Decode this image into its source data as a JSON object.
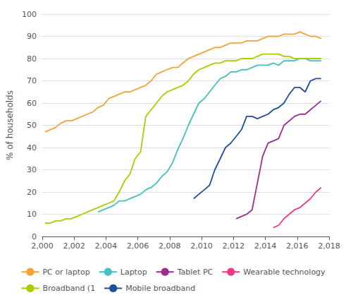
{
  "chart_data": {
    "type": "line",
    "ylabel": "% of households",
    "xlim": [
      2000,
      2018
    ],
    "ylim": [
      0,
      100
    ],
    "xticks": [
      2000,
      2002,
      2004,
      2006,
      2008,
      2010,
      2012,
      2014,
      2016,
      2018
    ],
    "yticks": [
      0,
      10,
      20,
      30,
      40,
      50,
      60,
      70,
      80,
      90,
      100
    ],
    "grid": true,
    "legend": "bottom",
    "series": [
      {
        "name": "PC or laptop",
        "color": "#F4A436",
        "x": [
          2000.17,
          2000.5,
          2000.83,
          2001.17,
          2001.5,
          2001.83,
          2002.17,
          2002.5,
          2002.83,
          2003.17,
          2003.5,
          2003.83,
          2004.17,
          2004.5,
          2004.83,
          2005.17,
          2005.5,
          2005.83,
          2006.17,
          2006.5,
          2006.83,
          2007.17,
          2007.5,
          2007.83,
          2008.17,
          2008.5,
          2008.83,
          2009.17,
          2009.5,
          2009.83,
          2010.17,
          2010.5,
          2010.83,
          2011.17,
          2011.5,
          2011.83,
          2012.17,
          2012.5,
          2012.83,
          2013.17,
          2013.5,
          2013.83,
          2014.17,
          2014.5,
          2014.83,
          2015.17,
          2015.5,
          2015.83,
          2016.17,
          2016.5,
          2016.83,
          2017.17,
          2017.5
        ],
        "values": [
          47,
          48,
          49,
          51,
          52,
          52,
          53,
          54,
          55,
          56,
          58,
          59,
          62,
          63,
          64,
          65,
          65,
          66,
          67,
          68,
          70,
          73,
          74,
          75,
          76,
          76,
          78,
          80,
          81,
          82,
          83,
          84,
          85,
          85,
          86,
          87,
          87,
          87,
          88,
          88,
          88,
          89,
          90,
          90,
          90,
          91,
          91,
          91,
          92,
          91,
          90,
          90,
          89
        ]
      },
      {
        "name": "Laptop",
        "color": "#45BFBF",
        "x": [
          2003.5,
          2003.83,
          2004.17,
          2004.5,
          2004.83,
          2005.17,
          2005.5,
          2005.83,
          2006.17,
          2006.5,
          2006.83,
          2007.17,
          2007.5,
          2007.83,
          2008.17,
          2008.5,
          2008.83,
          2009.17,
          2009.5,
          2009.83,
          2010.17,
          2010.5,
          2010.83,
          2011.17,
          2011.5,
          2011.83,
          2012.17,
          2012.5,
          2012.83,
          2013.17,
          2013.5,
          2013.83,
          2014.17,
          2014.5,
          2014.83,
          2015.17,
          2015.5,
          2015.83,
          2016.17,
          2016.5,
          2016.83,
          2017.17,
          2017.5
        ],
        "values": [
          11,
          12,
          13,
          14,
          16,
          16,
          17,
          18,
          19,
          21,
          22,
          24,
          27,
          29,
          33,
          39,
          44,
          50,
          55,
          60,
          62,
          65,
          68,
          71,
          72,
          74,
          74,
          75,
          75,
          76,
          77,
          77,
          77,
          78,
          77,
          79,
          79,
          79,
          80,
          80,
          79,
          79,
          79
        ]
      },
      {
        "name": "Tablet PC",
        "color": "#9B2D8E",
        "x": [
          2012.17,
          2012.5,
          2012.83,
          2013.17,
          2013.5,
          2013.83,
          2014.17,
          2014.5,
          2014.83,
          2015.17,
          2015.5,
          2015.83,
          2016.17,
          2016.5,
          2016.83,
          2017.17,
          2017.5
        ],
        "values": [
          8,
          9,
          10,
          12,
          24,
          36,
          42,
          43,
          44,
          50,
          52,
          54,
          55,
          55,
          57,
          59,
          61
        ]
      },
      {
        "name": "Wearable technology",
        "color": "#F0388A",
        "x": [
          2014.5,
          2014.83,
          2015.17,
          2015.5,
          2015.83,
          2016.17,
          2016.5,
          2016.83,
          2017.17,
          2017.5
        ],
        "values": [
          4,
          5,
          8,
          10,
          12,
          13,
          15,
          17,
          20,
          22
        ]
      },
      {
        "name": "Broadband (1",
        "color": "#AACC00",
        "x": [
          2000.17,
          2000.5,
          2000.83,
          2001.17,
          2001.5,
          2001.83,
          2002.17,
          2002.5,
          2002.83,
          2003.17,
          2003.5,
          2003.83,
          2004.17,
          2004.5,
          2004.83,
          2005.17,
          2005.5,
          2005.83,
          2006.17,
          2006.5,
          2006.83,
          2007.17,
          2007.5,
          2007.83,
          2008.17,
          2008.5,
          2008.83,
          2009.17,
          2009.5,
          2009.83,
          2010.17,
          2010.5,
          2010.83,
          2011.17,
          2011.5,
          2011.83,
          2012.17,
          2012.5,
          2012.83,
          2013.17,
          2013.5,
          2013.83,
          2014.17,
          2014.5,
          2014.83,
          2015.17,
          2015.5,
          2015.83,
          2016.17,
          2016.5,
          2016.83,
          2017.17,
          2017.5
        ],
        "values": [
          6,
          6,
          7,
          7,
          8,
          8,
          9,
          10,
          11,
          12,
          13,
          14,
          15,
          16,
          20,
          25,
          28,
          35,
          38,
          54,
          57,
          60,
          63,
          65,
          66,
          67,
          68,
          70,
          73,
          75,
          76,
          77,
          78,
          78,
          79,
          79,
          79,
          80,
          80,
          80,
          81,
          82,
          82,
          82,
          82,
          81,
          81,
          80,
          80,
          80,
          80,
          80,
          80
        ]
      },
      {
        "name": "Mobile broadband",
        "color": "#1F4E9B",
        "x": [
          2009.5,
          2009.83,
          2010.17,
          2010.5,
          2010.83,
          2011.17,
          2011.5,
          2011.83,
          2012.17,
          2012.5,
          2012.83,
          2013.17,
          2013.5,
          2013.83,
          2014.17,
          2014.5,
          2014.83,
          2015.17,
          2015.5,
          2015.83,
          2016.17,
          2016.5,
          2016.83,
          2017.17,
          2017.5
        ],
        "values": [
          17,
          19,
          21,
          23,
          30,
          35,
          40,
          42,
          45,
          48,
          54,
          54,
          53,
          54,
          55,
          57,
          58,
          60,
          64,
          67,
          67,
          65,
          70,
          71,
          71
        ]
      }
    ]
  }
}
